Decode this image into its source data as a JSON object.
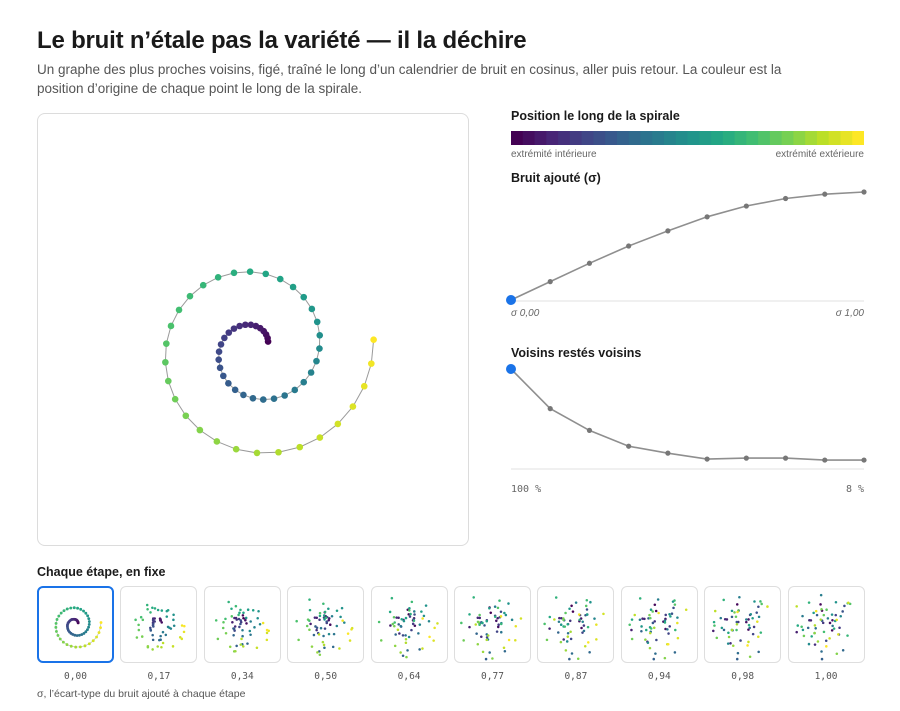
{
  "header": {
    "title": "Le bruit n’étale pas la variété — il la déchire",
    "subtitle": "Un graphe des plus proches voisins, figé, traîné le long d’un calendrier de bruit en cosinus, aller puis retour. La couleur est la position d’origine de chaque point le long de la spirale."
  },
  "colorbar": {
    "title": "Position le long de la spirale",
    "left_label": "extrémité intérieure",
    "right_label": "extrémité extérieure",
    "colors": [
      "#440154",
      "#482475",
      "#414487",
      "#355f8d",
      "#2a788e",
      "#21918c",
      "#22a884",
      "#44bf70",
      "#7ad151",
      "#bddf26",
      "#fde725"
    ]
  },
  "chart_data": [
    {
      "type": "line",
      "title": "Bruit ajouté (σ)",
      "x": [
        0,
        1,
        2,
        3,
        4,
        5,
        6,
        7,
        8,
        9
      ],
      "values": [
        0.0,
        0.17,
        0.34,
        0.5,
        0.64,
        0.77,
        0.87,
        0.94,
        0.98,
        1.0
      ],
      "ylim": [
        0,
        1
      ],
      "current_index": 0,
      "x_start_label": "σ 0,00",
      "x_end_label": "σ 1,00"
    },
    {
      "type": "line",
      "title": "Voisins restés voisins",
      "x": [
        0,
        1,
        2,
        3,
        4,
        5,
        6,
        7,
        8,
        9
      ],
      "values": [
        100,
        60,
        38,
        22,
        15,
        9,
        10,
        10,
        8,
        8
      ],
      "ylim": [
        0,
        100
      ],
      "current_index": 0,
      "x_start_label": "100 %",
      "x_end_label": "8 %"
    },
    {
      "type": "scatter",
      "title": "Chaque étape, en fixe",
      "sigma_labels": [
        "0,00",
        "0,17",
        "0,34",
        "0,50",
        "0,64",
        "0,77",
        "0,87",
        "0,94",
        "0,98",
        "1,00"
      ],
      "sigmas": [
        0.0,
        0.17,
        0.34,
        0.5,
        0.64,
        0.77,
        0.87,
        0.94,
        0.98,
        1.0
      ],
      "selected_index": 0,
      "footnote": "σ, l’écart-type du bruit ajouté à chaque étape"
    }
  ]
}
